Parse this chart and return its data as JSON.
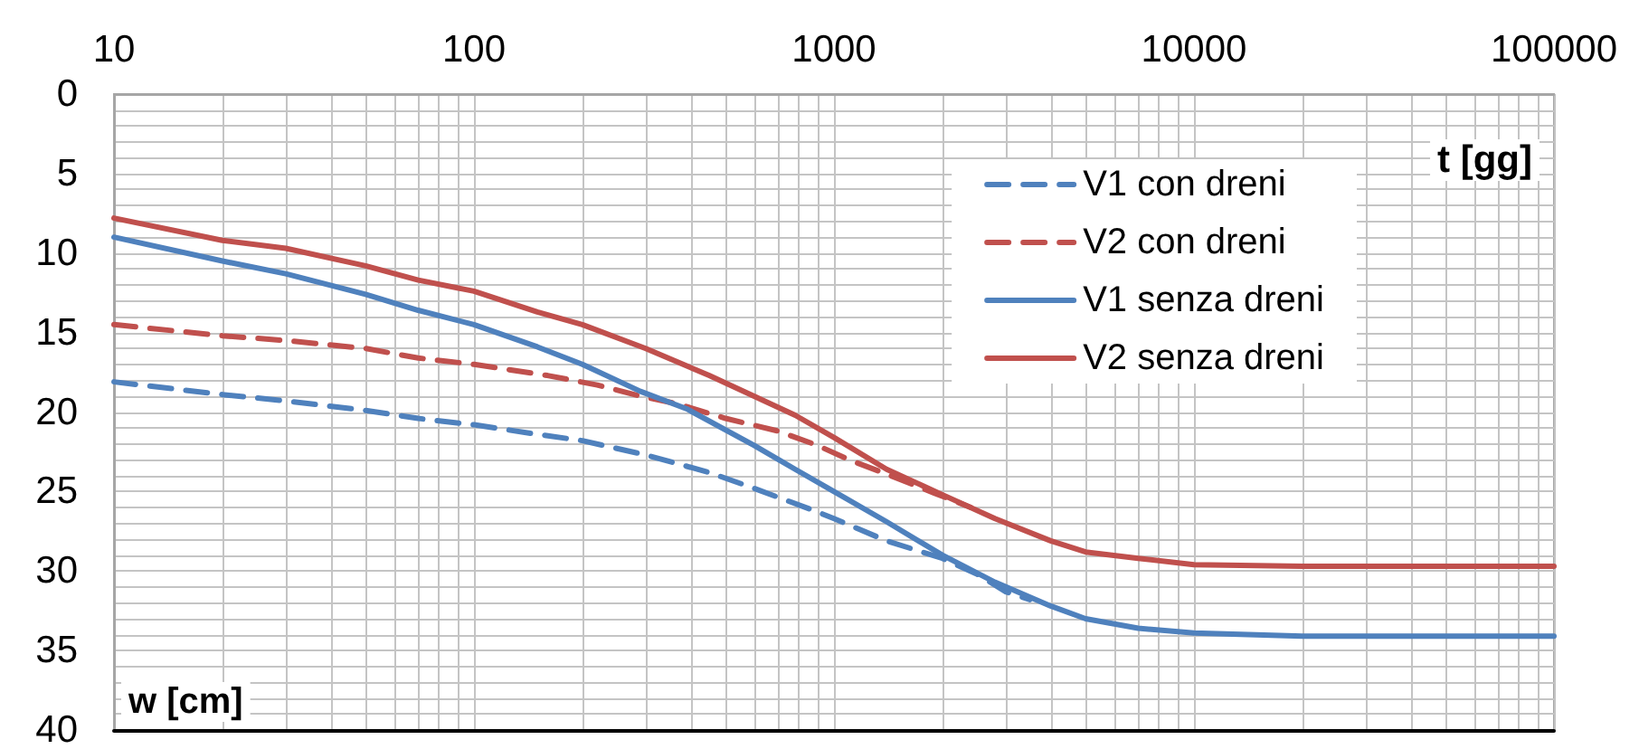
{
  "chart_data": {
    "type": "line",
    "xlabel": "t [gg]",
    "ylabel": "w [cm]",
    "log": "x",
    "grid": true,
    "legend": "top right",
    "xlim": [
      10,
      100000
    ],
    "xticks": [
      10,
      {
        "value": 20,
        "label": null
      },
      {
        "value": 30,
        "label": null
      },
      {
        "value": 40,
        "label": null
      },
      {
        "value": 50,
        "label": null
      },
      {
        "value": 60,
        "label": null
      },
      {
        "value": 70,
        "label": null
      },
      {
        "value": 80,
        "label": null
      },
      {
        "value": 90,
        "label": null
      },
      100,
      {
        "value": 200,
        "label": null
      },
      {
        "value": 300,
        "label": null
      },
      {
        "value": 400,
        "label": null
      },
      {
        "value": 500,
        "label": null
      },
      {
        "value": 600,
        "label": null
      },
      {
        "value": 700,
        "label": null
      },
      {
        "value": 800,
        "label": null
      },
      {
        "value": 900,
        "label": null
      },
      1000,
      {
        "value": 2000,
        "label": null
      },
      {
        "value": 3000,
        "label": null
      },
      {
        "value": 4000,
        "label": null
      },
      {
        "value": 5000,
        "label": null
      },
      {
        "value": 6000,
        "label": null
      },
      {
        "value": 7000,
        "label": null
      },
      {
        "value": 8000,
        "label": null
      },
      {
        "value": 9000,
        "label": null
      },
      10000,
      {
        "value": 20000,
        "label": null
      },
      {
        "value": 30000,
        "label": null
      },
      {
        "value": 40000,
        "label": null
      },
      {
        "value": 50000,
        "label": null
      },
      {
        "value": 60000,
        "label": null
      },
      {
        "value": 70000,
        "label": null
      },
      {
        "value": 80000,
        "label": null
      },
      {
        "value": 90000,
        "label": null
      },
      100000
    ],
    "ylim": [
      40,
      0
    ],
    "yticks": [
      0,
      {
        "value": 1,
        "label": null
      },
      {
        "value": 2,
        "label": null
      },
      {
        "value": 3,
        "label": null
      },
      {
        "value": 4,
        "label": null
      },
      5,
      {
        "value": 6,
        "label": null
      },
      {
        "value": 7,
        "label": null
      },
      {
        "value": 8,
        "label": null
      },
      {
        "value": 9,
        "label": null
      },
      10,
      {
        "value": 11,
        "label": null
      },
      {
        "value": 12,
        "label": null
      },
      {
        "value": 13,
        "label": null
      },
      {
        "value": 14,
        "label": null
      },
      15,
      {
        "value": 16,
        "label": null
      },
      {
        "value": 17,
        "label": null
      },
      {
        "value": 18,
        "label": null
      },
      {
        "value": 19,
        "label": null
      },
      20,
      {
        "value": 21,
        "label": null
      },
      {
        "value": 22,
        "label": null
      },
      {
        "value": 23,
        "label": null
      },
      {
        "value": 24,
        "label": null
      },
      25,
      {
        "value": 26,
        "label": null
      },
      {
        "value": 27,
        "label": null
      },
      {
        "value": 28,
        "label": null
      },
      {
        "value": 29,
        "label": null
      },
      30,
      {
        "value": 31,
        "label": null
      },
      {
        "value": 32,
        "label": null
      },
      {
        "value": 33,
        "label": null
      },
      {
        "value": 34,
        "label": null
      },
      35,
      {
        "value": 36,
        "label": null
      },
      {
        "value": 37,
        "label": null
      },
      {
        "value": 38,
        "label": null
      },
      {
        "value": 39,
        "label": null
      },
      40
    ],
    "series": [
      {
        "name": "V1 con dreni",
        "color": "#4f81bd",
        "line_style": "dashed",
        "x": [
          10,
          20,
          30,
          50,
          70,
          100,
          150,
          200,
          300,
          450,
          600,
          880,
          1000,
          1400,
          2000,
          2500,
          3000,
          3500
        ],
        "values": [
          18.1,
          18.9,
          19.3,
          19.9,
          20.4,
          20.8,
          21.4,
          21.8,
          22.7,
          23.8,
          24.8,
          26.2,
          26.7,
          28.1,
          29.2,
          30.2,
          31.3,
          31.8
        ]
      },
      {
        "name": "V2 con dreni",
        "color": "#c0504d",
        "line_style": "dashed",
        "x": [
          10,
          20,
          30,
          50,
          70,
          100,
          160,
          220,
          290,
          370,
          500,
          700,
          900,
          1100,
          1400,
          1900,
          2400
        ],
        "values": [
          14.5,
          15.2,
          15.5,
          16.0,
          16.6,
          17.0,
          17.7,
          18.3,
          19.0,
          19.5,
          20.4,
          21.2,
          22.1,
          23.0,
          23.9,
          25.1,
          26.0
        ]
      },
      {
        "name": "V1 senza dreni",
        "color": "#4f81bd",
        "line_style": "solid",
        "x": [
          10,
          20,
          30,
          50,
          70,
          100,
          150,
          200,
          290,
          390,
          600,
          780,
          1000,
          1400,
          2000,
          2800,
          4000,
          5000,
          7000,
          10000,
          20000,
          100000
        ],
        "values": [
          9.0,
          10.5,
          11.3,
          12.6,
          13.6,
          14.5,
          15.9,
          17.0,
          18.7,
          19.8,
          22.1,
          23.6,
          25.0,
          26.9,
          29.0,
          30.7,
          32.2,
          33.0,
          33.6,
          33.9,
          34.1,
          34.1
        ]
      },
      {
        "name": "V2 senza dreni",
        "color": "#c0504d",
        "line_style": "solid",
        "x": [
          10,
          20,
          30,
          50,
          70,
          100,
          150,
          200,
          300,
          450,
          600,
          780,
          1000,
          1400,
          2000,
          2800,
          4000,
          5000,
          7000,
          10000,
          20000,
          100000
        ],
        "values": [
          7.8,
          9.2,
          9.7,
          10.8,
          11.7,
          12.4,
          13.7,
          14.5,
          16.0,
          17.7,
          19.0,
          20.2,
          21.6,
          23.6,
          25.2,
          26.7,
          28.1,
          28.8,
          29.2,
          29.6,
          29.7,
          29.7
        ]
      }
    ]
  }
}
